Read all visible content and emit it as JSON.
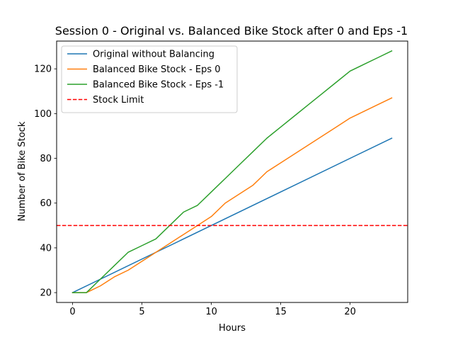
{
  "chart_data": {
    "type": "line",
    "title": "Session 0 - Original vs. Balanced Bike Stock after 0 and Eps -1",
    "xlabel": "Hours",
    "ylabel": "Number of Bike Stock",
    "xlim": [
      -1.15,
      24.15
    ],
    "ylim": [
      15.6,
      132.4
    ],
    "xticks": [
      0,
      5,
      10,
      15,
      20
    ],
    "yticks": [
      20,
      40,
      60,
      80,
      100,
      120
    ],
    "legend_position": "top-left",
    "grid": false,
    "series": [
      {
        "name": "Original without Balancing",
        "color": "#1f77b4",
        "dash": "solid",
        "x": [
          0,
          23
        ],
        "y": [
          20,
          89
        ]
      },
      {
        "name": "Balanced Bike Stock - Eps 0",
        "color": "#ff7f0e",
        "dash": "solid",
        "x": [
          0,
          1,
          2,
          3,
          4,
          5,
          6,
          7,
          8,
          9,
          10,
          11,
          12,
          13,
          14,
          15,
          16,
          17,
          18,
          19,
          20,
          21,
          22,
          23
        ],
        "y": [
          20,
          20,
          23,
          27,
          30,
          34,
          38,
          42,
          46,
          50,
          54,
          60,
          64,
          68,
          74,
          78,
          82,
          86,
          90,
          94,
          98,
          101,
          104,
          107
        ]
      },
      {
        "name": "Balanced Bike Stock - Eps -1",
        "color": "#2ca02c",
        "dash": "solid",
        "x": [
          0,
          1,
          2,
          3,
          4,
          5,
          6,
          7,
          8,
          9,
          10,
          11,
          12,
          13,
          14,
          15,
          16,
          17,
          18,
          19,
          20,
          21,
          22,
          23
        ],
        "y": [
          20,
          20,
          26,
          32,
          38,
          41,
          44,
          50,
          56,
          59,
          65,
          71,
          77,
          83,
          89,
          94,
          99,
          104,
          109,
          114,
          119,
          122,
          125,
          128
        ]
      }
    ],
    "hlines": [
      {
        "name": "Stock Limit",
        "y": 50,
        "color": "#ff0000",
        "dash": "dashed"
      }
    ]
  }
}
